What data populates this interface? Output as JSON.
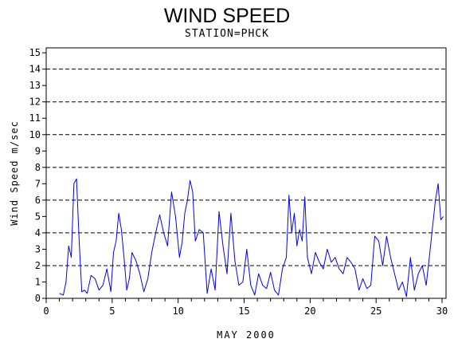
{
  "chart_data": {
    "type": "line",
    "title": "WIND SPEED",
    "subtitle": "STATION=PHCK",
    "xlabel": "MAY 2000",
    "ylabel": "Wind Speed m/sec",
    "xlim": [
      0,
      30.3
    ],
    "ylim": [
      0,
      15.3
    ],
    "x_ticks": [
      0,
      5,
      10,
      15,
      20,
      25,
      30
    ],
    "y_ticks": [
      0,
      1,
      2,
      3,
      4,
      5,
      6,
      7,
      8,
      9,
      10,
      11,
      12,
      13,
      14,
      15
    ],
    "gridlines_dashed_at": [
      2,
      4,
      6,
      8,
      10,
      12,
      14
    ],
    "line_color": "#0000ff",
    "series": [
      {
        "x": [
          1.0,
          1.3,
          1.5,
          1.7,
          1.9,
          2.1,
          2.3,
          2.5,
          2.7,
          2.9,
          3.1,
          3.4,
          3.7,
          4.0,
          4.3,
          4.6,
          4.9,
          5.1,
          5.3,
          5.5,
          5.7,
          5.9,
          6.1,
          6.3,
          6.5,
          6.8,
          7.1,
          7.4,
          7.7,
          8.0,
          8.3,
          8.6,
          8.9,
          9.2,
          9.5,
          9.8,
          10.1,
          10.3,
          10.5,
          10.7,
          10.9,
          11.1,
          11.3,
          11.6,
          11.9,
          12.2,
          12.5,
          12.8,
          13.1,
          13.4,
          13.7,
          14.0,
          14.3,
          14.6,
          14.9,
          15.2,
          15.5,
          15.8,
          16.1,
          16.4,
          16.7,
          17.0,
          17.3,
          17.6,
          17.9,
          18.2,
          18.4,
          18.6,
          18.8,
          19.0,
          19.2,
          19.4,
          19.6,
          19.8,
          20.1,
          20.4,
          20.7,
          21.0,
          21.3,
          21.6,
          21.9,
          22.2,
          22.5,
          22.8,
          23.1,
          23.4,
          23.7,
          24.0,
          24.3,
          24.6,
          24.9,
          25.2,
          25.5,
          25.8,
          26.1,
          26.4,
          26.7,
          27.0,
          27.3,
          27.6,
          27.9,
          28.2,
          28.5,
          28.8,
          29.1,
          29.3,
          29.5,
          29.7,
          29.9,
          30.1
        ],
        "y": [
          0.3,
          0.2,
          1.0,
          3.2,
          2.5,
          7.0,
          7.3,
          3.5,
          0.4,
          0.5,
          0.3,
          1.4,
          1.2,
          0.5,
          0.8,
          1.8,
          0.4,
          2.8,
          3.5,
          5.2,
          4.2,
          2.5,
          0.5,
          1.2,
          2.8,
          2.3,
          1.5,
          0.4,
          1.2,
          2.8,
          4.0,
          5.1,
          4.0,
          3.2,
          6.5,
          5.0,
          2.5,
          3.4,
          5.2,
          6.0,
          7.2,
          6.5,
          3.5,
          4.2,
          4.0,
          0.3,
          1.8,
          0.5,
          5.3,
          3.2,
          1.5,
          5.2,
          2.3,
          0.8,
          1.0,
          3.0,
          0.8,
          0.2,
          1.5,
          0.8,
          0.6,
          1.6,
          0.5,
          0.2,
          1.8,
          2.5,
          6.3,
          4.0,
          5.2,
          3.2,
          4.2,
          3.5,
          6.2,
          2.5,
          1.5,
          2.8,
          2.2,
          1.8,
          3.0,
          2.2,
          2.5,
          1.8,
          1.5,
          2.5,
          2.2,
          1.8,
          0.5,
          1.2,
          0.6,
          0.8,
          3.8,
          3.5,
          2.0,
          3.8,
          2.5,
          1.5,
          0.5,
          1.0,
          0.1,
          2.5,
          0.5,
          1.5,
          2.0,
          0.8,
          3.0,
          4.5,
          6.0,
          7.0,
          4.8,
          5.0
        ]
      }
    ]
  }
}
